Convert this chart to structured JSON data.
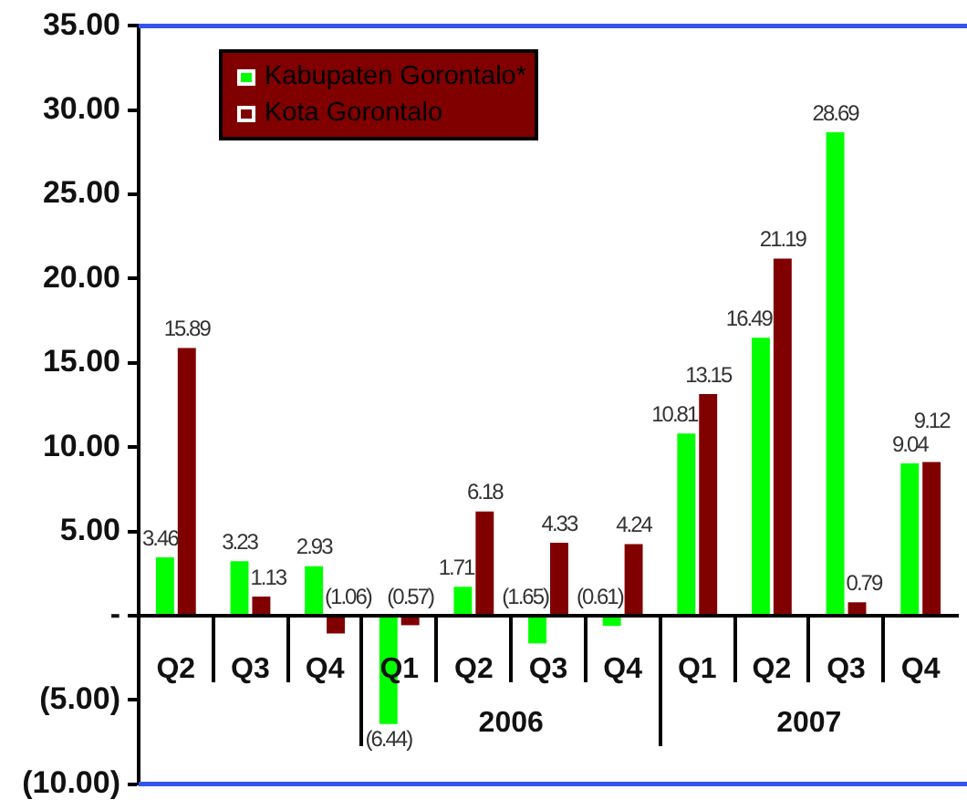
{
  "chart_data": {
    "type": "bar",
    "categories": [
      "Q2",
      "Q3",
      "Q4",
      "Q1",
      "Q2",
      "Q3",
      "Q4",
      "Q1",
      "Q2",
      "Q3",
      "Q4"
    ],
    "series": [
      {
        "name": "Kabupaten Gorontalo*",
        "color": "#00ff00",
        "values": [
          3.46,
          3.23,
          2.93,
          -6.44,
          1.71,
          -1.65,
          -0.61,
          10.81,
          16.49,
          28.69,
          9.04
        ],
        "value_labels": [
          "3.46",
          "3.23",
          "2.93",
          "(6.44)",
          "1.71",
          "(1.65)",
          "(0.61)",
          "10.81",
          "16.49",
          "28.69",
          "9.04"
        ]
      },
      {
        "name": "Kota Gorontalo",
        "color": "#800000",
        "values": [
          15.89,
          1.13,
          -1.06,
          -0.57,
          6.18,
          4.33,
          4.24,
          13.15,
          21.19,
          0.79,
          9.12
        ],
        "value_labels": [
          "15.89",
          "1.13",
          "(1.06)",
          "(0.57)",
          "6.18",
          "4.33",
          "4.24",
          "13.15",
          "21.19",
          "0.79",
          "9.12"
        ]
      }
    ],
    "ylim": [
      -10,
      35
    ],
    "yticks": [
      {
        "value": 35,
        "label": "35.00"
      },
      {
        "value": 30,
        "label": "30.00"
      },
      {
        "value": 25,
        "label": "25.00"
      },
      {
        "value": 20,
        "label": "20.00"
      },
      {
        "value": 15,
        "label": "15.00"
      },
      {
        "value": 10,
        "label": "10.00"
      },
      {
        "value": 5,
        "label": "5.00"
      },
      {
        "value": 0,
        "label": "-"
      },
      {
        "value": -5,
        "label": "(5.00)"
      },
      {
        "value": -10,
        "label": "(10.00)"
      }
    ],
    "annotations": [
      "2006",
      "2007"
    ],
    "legend": "top left",
    "grid": false
  }
}
